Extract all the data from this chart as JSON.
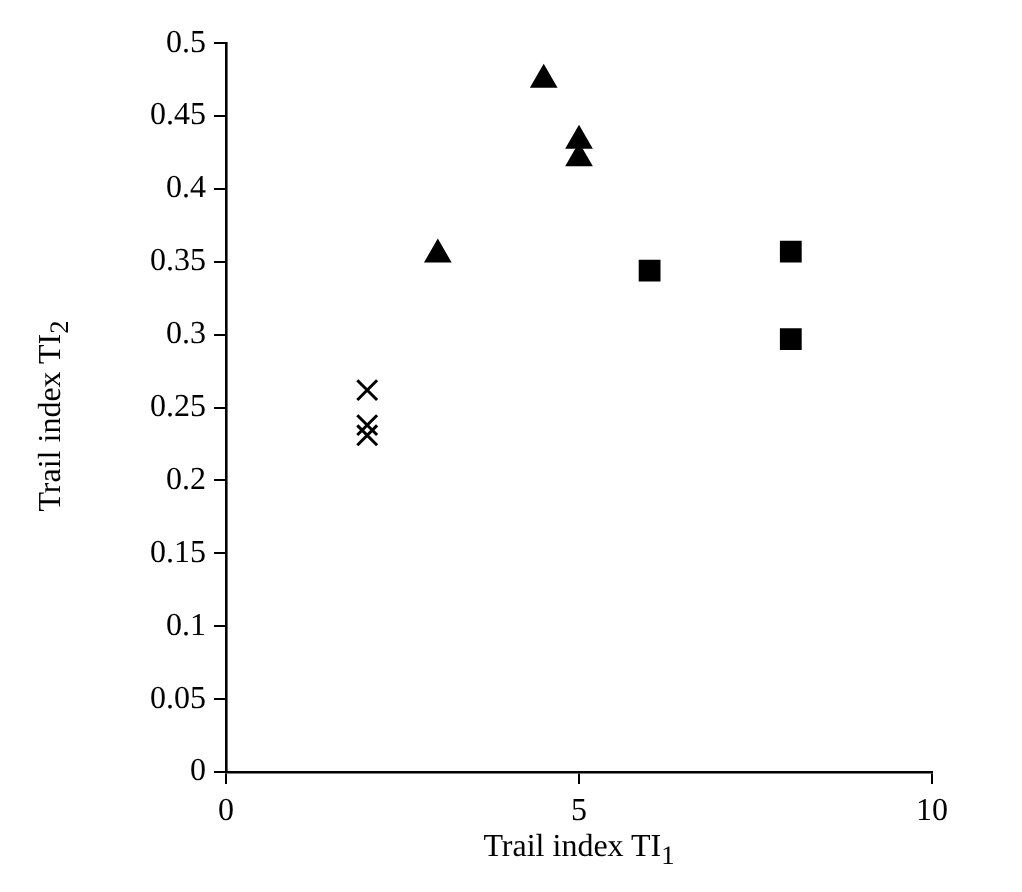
{
  "chart_data": {
    "type": "scatter",
    "xlabel": "Trail index TI$_{1}$",
    "ylabel": "Trail index TI$_{2}$",
    "xlim": [
      0,
      10
    ],
    "xticks": [
      0,
      5,
      10
    ],
    "ylim": [
      0,
      0.5
    ],
    "yticks": [
      0,
      0.05,
      0.1,
      0.15,
      0.2,
      0.25,
      0.3,
      0.35,
      0.4,
      0.45,
      0.5
    ],
    "grid": false,
    "legend": false,
    "series": [
      {
        "color": "#000000",
        "marker": "cross",
        "x": [
          2,
          2,
          2
        ],
        "values": [
          0.262,
          0.238,
          0.231
        ]
      },
      {
        "color": "#000000",
        "marker": "triangle",
        "x": [
          3,
          4.5,
          5,
          5
        ],
        "values": [
          0.355,
          0.475,
          0.433,
          0.421
        ]
      },
      {
        "color": "#000000",
        "marker": "square",
        "x": [
          6,
          8,
          8
        ],
        "values": [
          0.344,
          0.357,
          0.297
        ]
      }
    ]
  }
}
